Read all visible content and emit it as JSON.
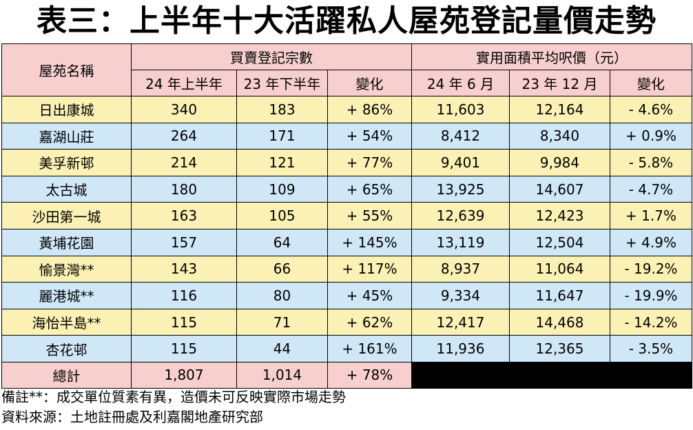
{
  "title": "表三：上半年十大活躍私人屋苑登記量價走勢",
  "header": {
    "estate": "屋苑名稱",
    "group_transactions": "買賣登記宗數",
    "group_price": "實用面積平均呎價（元）",
    "h1_24": "24 年上半年",
    "h2_23": "23 年下半年",
    "change1": "變化",
    "jun24": "24 年 6 月",
    "dec23": "23 年 12 月",
    "change2": "變化"
  },
  "rows": [
    [
      "日出康城",
      "340",
      "183",
      "+ 86%",
      "11,603",
      "12,164",
      "- 4.6%"
    ],
    [
      "嘉湖山莊",
      "264",
      "171",
      "+ 54%",
      "8,412",
      "8,340",
      "+ 0.9%"
    ],
    [
      "美孚新邨",
      "214",
      "121",
      "+ 77%",
      "9,401",
      "9,984",
      "- 5.8%"
    ],
    [
      "太古城",
      "180",
      "109",
      "+ 65%",
      "13,925",
      "14,607",
      "- 4.7%"
    ],
    [
      "沙田第一城",
      "163",
      "105",
      "+ 55%",
      "12,639",
      "12,423",
      "+ 1.7%"
    ],
    [
      "黃埔花園",
      "157",
      "64",
      "+ 145%",
      "13,119",
      "12,504",
      "+ 4.9%"
    ],
    [
      "愉景灣**",
      "143",
      "66",
      "+ 117%",
      "8,937",
      "11,064",
      "- 19.2%"
    ],
    [
      "麗港城**",
      "116",
      "80",
      "+ 45%",
      "9,334",
      "11,647",
      "- 19.9%"
    ],
    [
      "海怡半島**",
      "115",
      "71",
      "+ 62%",
      "12,417",
      "14,468",
      "- 14.2%"
    ],
    [
      "杏花邨",
      "115",
      "44",
      "+ 161%",
      "11,936",
      "12,365",
      "- 3.5%"
    ]
  ],
  "total": [
    "總計",
    "1,807",
    "1,014",
    "+ 78%"
  ],
  "notes": {
    "remark": "備註**：成交單位質素有異，造價未可反映實際市場走勢",
    "source": "資料來源：土地註冊處及利嘉閣地產研究部"
  },
  "colors": {
    "header_bg": "#f7cfcf",
    "row_yellow": "#fbf1b4",
    "row_blue": "#cfe7f7"
  }
}
